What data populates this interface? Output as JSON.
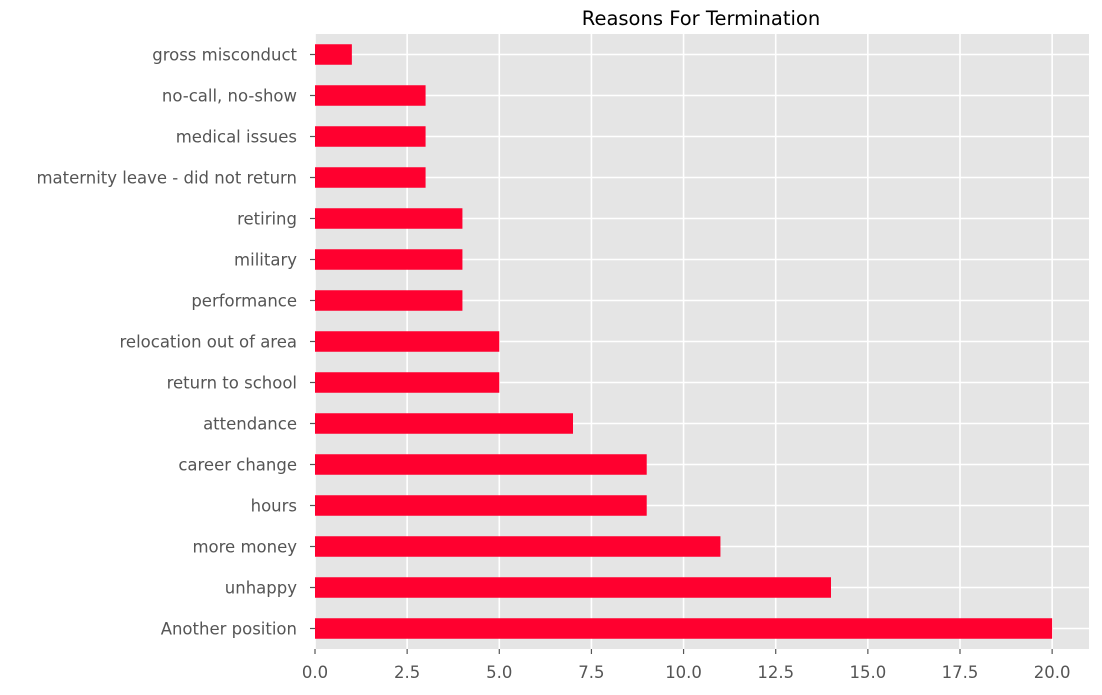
{
  "chart_data": {
    "type": "bar",
    "orientation": "horizontal",
    "title": "Reasons For Termination",
    "xlabel": "",
    "ylabel": "",
    "categories": [
      "Another position",
      "unhappy",
      "more money",
      "hours",
      "career change",
      "attendance",
      "return to school",
      "relocation out of area",
      "performance",
      "military",
      "retiring",
      "maternity leave - did not return",
      "medical issues",
      "no-call, no-show",
      "gross misconduct"
    ],
    "values": [
      20,
      14,
      11,
      9,
      9,
      7,
      5,
      5,
      4,
      4,
      4,
      3,
      3,
      3,
      1
    ],
    "xlim": [
      0,
      21
    ],
    "xticks": [
      0.0,
      2.5,
      5.0,
      7.5,
      10.0,
      12.5,
      15.0,
      17.5,
      20.0
    ],
    "xtick_labels": [
      "0.0",
      "2.5",
      "5.0",
      "7.5",
      "10.0",
      "12.5",
      "15.0",
      "17.5",
      "20.0"
    ],
    "grid": true,
    "colors": {
      "bar": "#ff002f",
      "plot_background": "#e5e5e5",
      "grid": "#ffffff"
    }
  }
}
